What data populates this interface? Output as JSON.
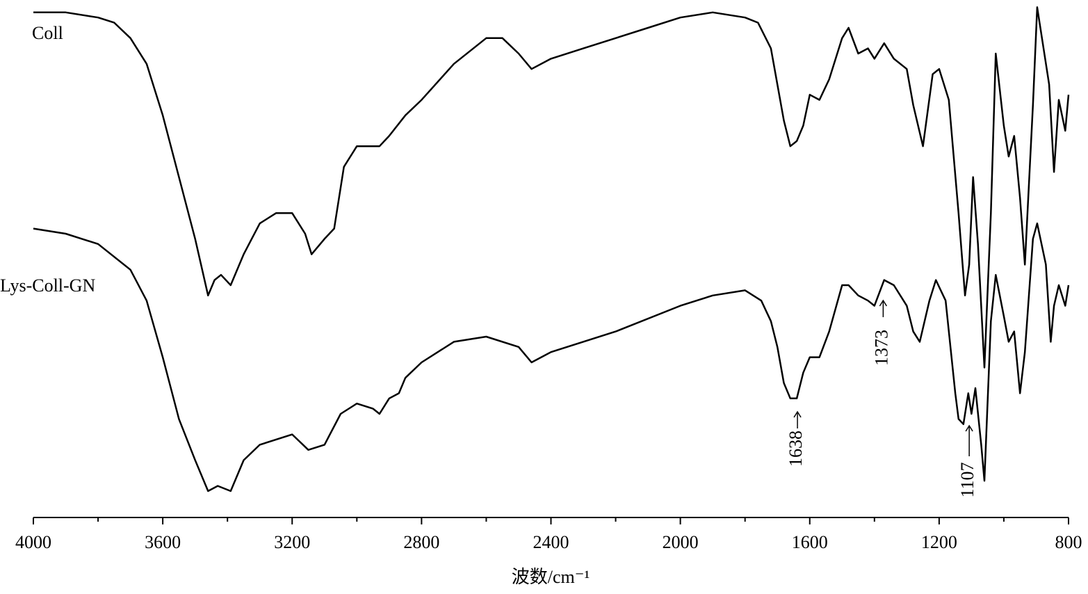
{
  "chart_data": {
    "type": "line",
    "xlabel": "波数/cm⁻¹",
    "xlim": [
      4000,
      800
    ],
    "xticks": [
      4000,
      3600,
      3200,
      2800,
      2400,
      2000,
      1600,
      1200,
      800
    ],
    "xminorticks": [
      3800,
      3400,
      3000,
      2600,
      2200,
      1800,
      1400,
      1000
    ],
    "ylim": [
      0,
      100
    ],
    "series": [
      {
        "name": "Coll",
        "color": "#000000",
        "x": [
          4000,
          3900,
          3800,
          3750,
          3700,
          3650,
          3600,
          3550,
          3500,
          3460,
          3440,
          3420,
          3390,
          3350,
          3300,
          3250,
          3200,
          3160,
          3140,
          3100,
          3070,
          3040,
          3000,
          2950,
          2930,
          2900,
          2850,
          2800,
          2700,
          2600,
          2550,
          2500,
          2460,
          2400,
          2300,
          2200,
          2100,
          2000,
          1900,
          1800,
          1760,
          1720,
          1700,
          1680,
          1660,
          1640,
          1620,
          1600,
          1570,
          1540,
          1500,
          1480,
          1450,
          1420,
          1400,
          1370,
          1340,
          1300,
          1280,
          1250,
          1220,
          1200,
          1170,
          1140,
          1120,
          1107,
          1095,
          1080,
          1060,
          1040,
          1025,
          1000,
          985,
          968,
          950,
          935,
          910,
          897,
          860,
          845,
          830,
          810,
          800
        ],
        "values": [
          98,
          98,
          97,
          96,
          93,
          88,
          78,
          66,
          54,
          43,
          46,
          47,
          45,
          51,
          57,
          59,
          59,
          55,
          51,
          54,
          56,
          68,
          72,
          72,
          72,
          74,
          78,
          81,
          88,
          93,
          93,
          90,
          87,
          89,
          91,
          93,
          95,
          97,
          98,
          97,
          96,
          91,
          84,
          77,
          72,
          73,
          76,
          82,
          81,
          85,
          93,
          95,
          90,
          91,
          89,
          92,
          89,
          87,
          80,
          72,
          86,
          87,
          81,
          59,
          43,
          49,
          66,
          53,
          29,
          59,
          90,
          76,
          70,
          74,
          62,
          49,
          80,
          99,
          84,
          67,
          81,
          75,
          82
        ]
      },
      {
        "name": "Lys-Coll-GN",
        "color": "#000000",
        "x": [
          4000,
          3900,
          3850,
          3800,
          3700,
          3650,
          3600,
          3550,
          3500,
          3460,
          3430,
          3390,
          3350,
          3300,
          3200,
          3150,
          3100,
          3050,
          3000,
          2950,
          2930,
          2900,
          2870,
          2850,
          2800,
          2700,
          2600,
          2500,
          2460,
          2400,
          2200,
          2000,
          1900,
          1800,
          1750,
          1720,
          1700,
          1680,
          1660,
          1640,
          1620,
          1600,
          1570,
          1540,
          1500,
          1480,
          1450,
          1420,
          1400,
          1370,
          1340,
          1300,
          1280,
          1260,
          1230,
          1210,
          1180,
          1150,
          1140,
          1125,
          1110,
          1100,
          1088,
          1070,
          1060,
          1040,
          1025,
          1000,
          985,
          968,
          950,
          935,
          910,
          897,
          870,
          855,
          845,
          830,
          810,
          800
        ],
        "values": [
          56,
          55,
          54,
          53,
          48,
          42,
          31,
          19,
          11,
          5,
          6,
          5,
          11,
          14,
          16,
          13,
          14,
          20,
          22,
          21,
          20,
          23,
          24,
          27,
          30,
          34,
          35,
          33,
          30,
          32,
          36,
          41,
          43,
          44,
          42,
          38,
          33,
          26,
          23,
          23,
          28,
          31,
          31,
          36,
          45,
          45,
          43,
          42,
          41,
          46,
          45,
          41,
          36,
          34,
          42,
          46,
          42,
          24,
          19,
          18,
          24,
          20,
          25,
          14,
          7,
          38,
          47,
          39,
          34,
          36,
          24,
          32,
          54,
          57,
          49,
          34,
          41,
          45,
          41,
          45
        ]
      }
    ],
    "annotations": [
      1638,
      1373,
      1107
    ]
  }
}
